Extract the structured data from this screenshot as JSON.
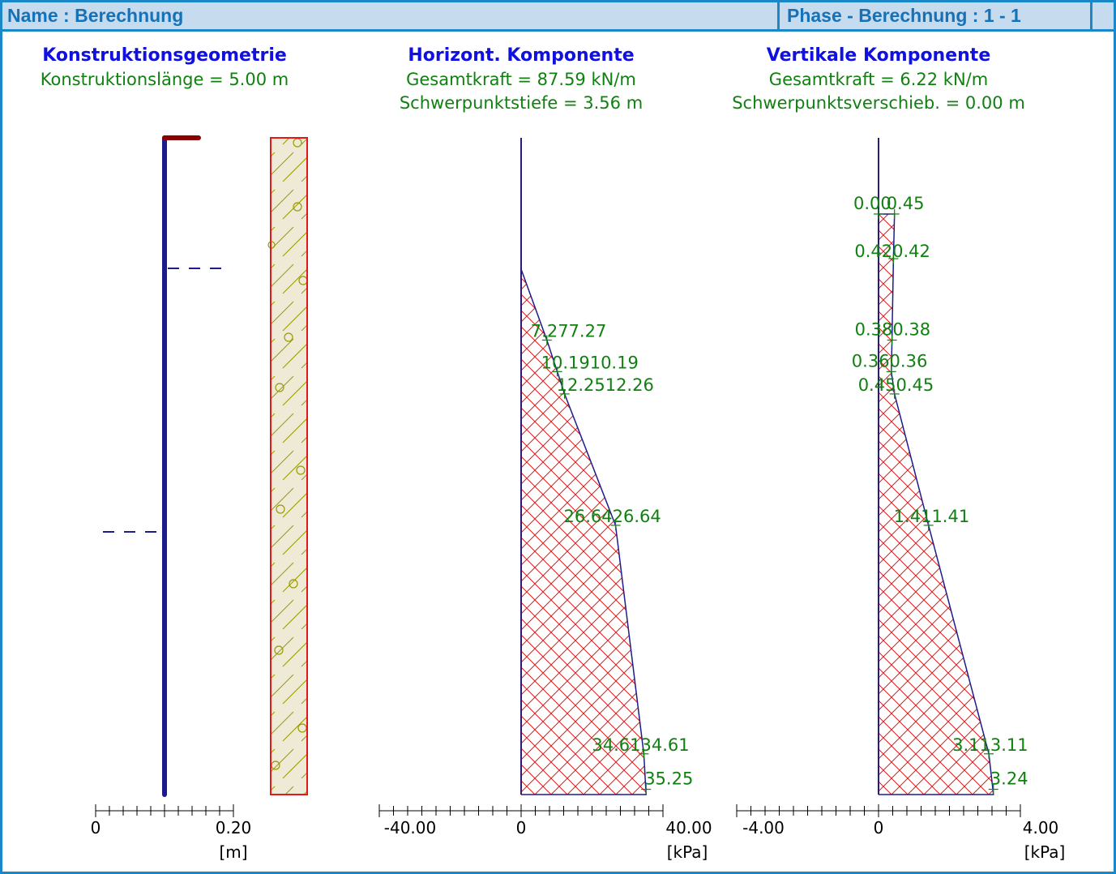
{
  "header": {
    "name": "Name : Berechnung",
    "phase": "Phase - Berechnung : 1 - 1"
  },
  "geometry": {
    "title": "Konstruktionsgeometrie",
    "info": "Konstruktionslänge = 5.00 m",
    "axis": {
      "min": 0,
      "max": 0.2,
      "tick_labels": [
        "0",
        "0.20"
      ],
      "unit": "[m]"
    },
    "wall_length_m": 5.0
  },
  "horizontal": {
    "title": "Horizont. Komponente",
    "info1": "Gesamtkraft = 87.59 kN/m",
    "info2": "Schwerpunktstiefe = 3.56 m",
    "axis": {
      "min": -40,
      "max": 40,
      "tick_labels": [
        "-40.00",
        "0",
        "40.00"
      ],
      "unit": "[kPa]"
    },
    "labels": [
      {
        "depth": 1.54,
        "text": "7.277.27",
        "value": 7.27
      },
      {
        "depth": 1.78,
        "text": "10.1910.19",
        "value": 10.19
      },
      {
        "depth": 1.95,
        "text": "12.2512.26",
        "value": 12.26
      },
      {
        "depth": 2.95,
        "text": "26.6426.64",
        "value": 26.64
      },
      {
        "depth": 4.69,
        "text": "34.6134.61",
        "value": 34.61
      },
      {
        "depth": 4.96,
        "text": "35.25",
        "value": 35.25
      }
    ]
  },
  "vertical": {
    "title": "Vertikale Komponente",
    "info1": "Gesamtkraft = 6.22 kN/m",
    "info2": "Schwerpunktsverschieb. = 0.00 m",
    "axis": {
      "min": -4,
      "max": 4,
      "tick_labels": [
        "-4.00",
        "0",
        "4.00"
      ],
      "unit": "[kPa]"
    },
    "labels": [
      {
        "depth": 0.58,
        "text": "0.00",
        "value": 0.0
      },
      {
        "depth": 0.58,
        "text": "0.45",
        "value": 0.45
      },
      {
        "depth": 0.92,
        "text": "0.420.42",
        "value": 0.42
      },
      {
        "depth": 1.54,
        "text": "0.380.38",
        "value": 0.38
      },
      {
        "depth": 1.78,
        "text": "0.360.36",
        "value": 0.36
      },
      {
        "depth": 1.95,
        "text": "0.450.45",
        "value": 0.45
      },
      {
        "depth": 2.95,
        "text": "1.411.41",
        "value": 1.41
      },
      {
        "depth": 4.69,
        "text": "3.113.11",
        "value": 3.11
      },
      {
        "depth": 4.96,
        "text": "3.24",
        "value": 3.24
      }
    ]
  },
  "chart_data": [
    {
      "type": "area",
      "title": "Horizont. Komponente",
      "xlabel": "[kPa]",
      "xlim": [
        -40,
        40
      ],
      "depth_m": [
        0.0,
        1.0,
        1.54,
        1.78,
        1.95,
        2.95,
        4.69,
        5.0
      ],
      "values": [
        0.0,
        0.0,
        7.27,
        10.19,
        12.26,
        26.64,
        34.61,
        35.25
      ]
    },
    {
      "type": "area",
      "title": "Vertikale Komponente",
      "xlabel": "[kPa]",
      "xlim": [
        -4,
        4
      ],
      "depth_m": [
        0.0,
        0.58,
        0.58,
        0.92,
        1.54,
        1.78,
        1.95,
        2.95,
        4.69,
        5.0
      ],
      "values": [
        0.0,
        0.0,
        0.45,
        0.42,
        0.38,
        0.36,
        0.45,
        1.41,
        3.11,
        3.24
      ]
    }
  ]
}
